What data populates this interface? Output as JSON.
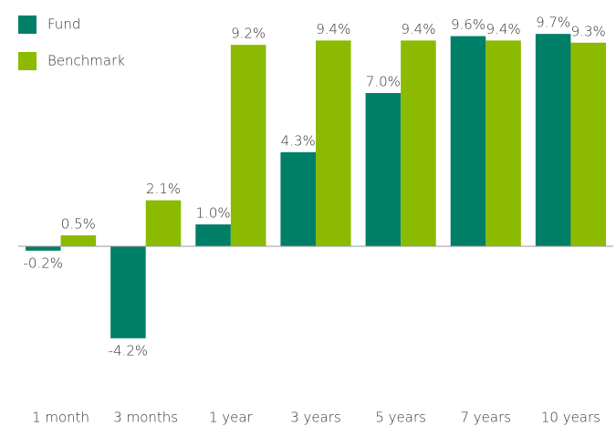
{
  "chart_data": {
    "type": "bar",
    "categories": [
      "1 month",
      "3 months",
      "1 year",
      "3 years",
      "5 years",
      "7 years",
      "10 years"
    ],
    "series": [
      {
        "name": "Fund",
        "color": "#007f68",
        "values": [
          -0.2,
          -4.2,
          1.0,
          4.3,
          7.0,
          9.6,
          9.7
        ],
        "value_labels": [
          "-0.2%",
          "-4.2%",
          "1.0%",
          "4.3%",
          "7.0%",
          "9.6%",
          "9.7%"
        ]
      },
      {
        "name": "Benchmark",
        "color": "#8cba00",
        "values": [
          0.5,
          2.1,
          9.2,
          9.4,
          9.4,
          9.4,
          9.3
        ],
        "value_labels": [
          "0.5%",
          "2.1%",
          "9.2%",
          "9.4%",
          "9.4%",
          "9.4%",
          "9.3%"
        ]
      }
    ]
  }
}
